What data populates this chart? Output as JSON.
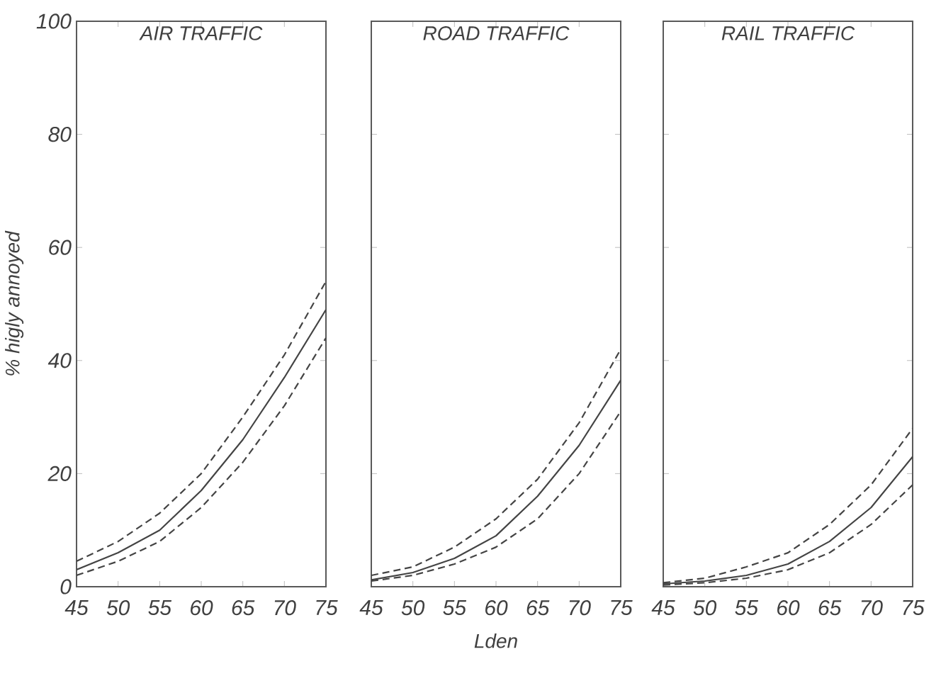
{
  "chart_data": [
    {
      "type": "line",
      "title": "AIR TRAFFIC",
      "ylabel": "% higly annoyed",
      "x": [
        45,
        50,
        55,
        60,
        65,
        70,
        75
      ],
      "xlim": [
        45,
        75
      ],
      "xticks": [
        45,
        50,
        55,
        60,
        65,
        70,
        75
      ],
      "ylim": [
        0,
        100
      ],
      "yticks": [
        0,
        20,
        40,
        60,
        80,
        100
      ],
      "grid": false,
      "marker": "none",
      "series": [
        {
          "color": "#444444",
          "line_style": "dashed",
          "values": [
            4.5,
            8,
            13,
            20,
            30,
            41,
            54
          ]
        },
        {
          "color": "#444444",
          "line_style": "solid",
          "values": [
            3,
            6,
            10,
            17,
            26,
            37,
            49
          ]
        },
        {
          "color": "#444444",
          "line_style": "dashed",
          "values": [
            2,
            4.5,
            8,
            14,
            22,
            32,
            44
          ]
        }
      ]
    },
    {
      "type": "line",
      "title": "ROAD TRAFFIC",
      "xlabel": "Lden",
      "x": [
        45,
        50,
        55,
        60,
        65,
        70,
        75
      ],
      "xlim": [
        45,
        75
      ],
      "xticks": [
        45,
        50,
        55,
        60,
        65,
        70,
        75
      ],
      "ylim": [
        0,
        100
      ],
      "yticks": [
        0,
        20,
        40,
        60,
        80,
        100
      ],
      "tick_labels": "x",
      "grid": false,
      "marker": "none",
      "series": [
        {
          "color": "#444444",
          "line_style": "dashed",
          "values": [
            2,
            3.5,
            7,
            12,
            19,
            29,
            42
          ]
        },
        {
          "color": "#444444",
          "line_style": "solid",
          "values": [
            1.2,
            2.5,
            5,
            9,
            16,
            25,
            36.5
          ]
        },
        {
          "color": "#444444",
          "line_style": "dashed",
          "values": [
            1,
            2,
            4,
            7,
            12,
            20,
            31
          ]
        }
      ]
    },
    {
      "type": "line",
      "title": "RAIL TRAFFIC",
      "x": [
        45,
        50,
        55,
        60,
        65,
        70,
        75
      ],
      "xlim": [
        45,
        75
      ],
      "xticks": [
        45,
        50,
        55,
        60,
        65,
        70,
        75
      ],
      "ylim": [
        0,
        100
      ],
      "yticks": [
        0,
        20,
        40,
        60,
        80,
        100
      ],
      "tick_labels": "x",
      "grid": false,
      "marker": "none",
      "series": [
        {
          "color": "#444444",
          "line_style": "dashed",
          "values": [
            0.7,
            1.5,
            3.5,
            6,
            11,
            18,
            28
          ]
        },
        {
          "color": "#444444",
          "line_style": "solid",
          "values": [
            0.5,
            1,
            2,
            4,
            8,
            14,
            23
          ]
        },
        {
          "color": "#444444",
          "line_style": "dashed",
          "values": [
            0.3,
            0.7,
            1.5,
            3,
            6,
            11,
            18
          ]
        }
      ]
    }
  ]
}
